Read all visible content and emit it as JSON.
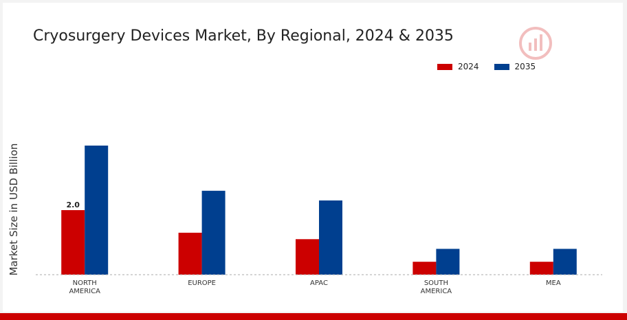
{
  "chart_data": {
    "type": "bar",
    "title": "Cryosurgery Devices Market, By Regional, 2024 & 2035",
    "xlabel": "",
    "ylabel": "Market Size in USD Billion",
    "categories": [
      [
        "NORTH",
        "AMERICA"
      ],
      [
        "EUROPE"
      ],
      [
        "APAC"
      ],
      [
        "SOUTH",
        "AMERICA"
      ],
      [
        "MEA"
      ]
    ],
    "series": [
      {
        "name": "2024",
        "color": "#cc0000",
        "values": [
          2.0,
          1.3,
          1.1,
          0.4,
          0.4
        ]
      },
      {
        "name": "2035",
        "color": "#003f8f",
        "values": [
          4.0,
          2.6,
          2.3,
          0.8,
          0.8
        ]
      }
    ],
    "data_labels": [
      {
        "series": 0,
        "index": 0,
        "text": "2.0"
      }
    ],
    "ylim": [
      0,
      5
    ],
    "grid": false,
    "legend_position": "top-right"
  },
  "colors": {
    "accent": "#cc0000",
    "baseline": "#aaaaaa"
  },
  "logo": {
    "icon": "market-research-logo-icon"
  }
}
